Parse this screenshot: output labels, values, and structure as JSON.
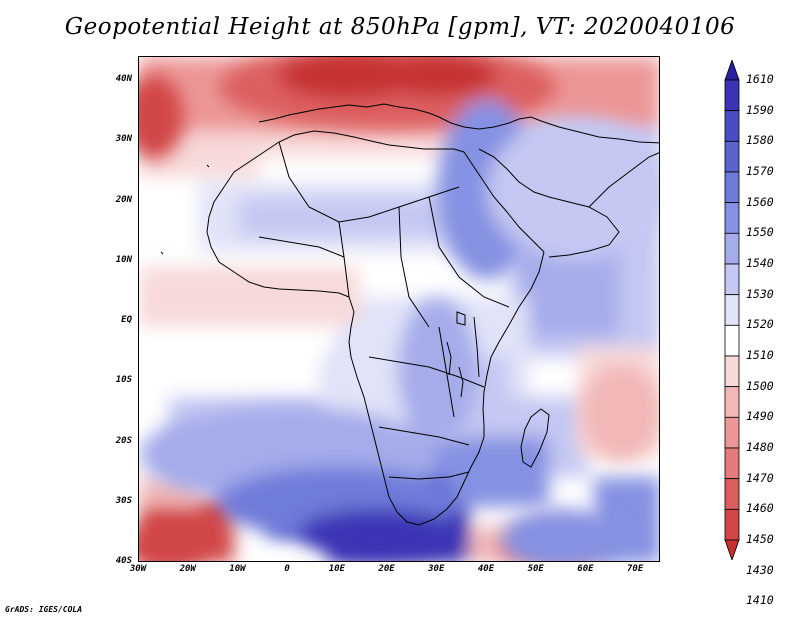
{
  "title": "Geopotential Height at 850hPa [gpm], VT: 2020040106",
  "footer": "GrADS: IGES/COLA",
  "lat_ticks": [
    {
      "value": 40,
      "label": "40N"
    },
    {
      "value": 30,
      "label": "30N"
    },
    {
      "value": 20,
      "label": "20N"
    },
    {
      "value": 10,
      "label": "10N"
    },
    {
      "value": 0,
      "label": "EQ"
    },
    {
      "value": -10,
      "label": "10S"
    },
    {
      "value": -20,
      "label": "20S"
    },
    {
      "value": -30,
      "label": "30S"
    },
    {
      "value": -40,
      "label": "40S"
    }
  ],
  "lon_ticks": [
    {
      "value": -30,
      "label": "30W"
    },
    {
      "value": -20,
      "label": "20W"
    },
    {
      "value": -10,
      "label": "10W"
    },
    {
      "value": 0,
      "label": "0"
    },
    {
      "value": 10,
      "label": "10E"
    },
    {
      "value": 20,
      "label": "20E"
    },
    {
      "value": 30,
      "label": "30E"
    },
    {
      "value": 40,
      "label": "40E"
    },
    {
      "value": 50,
      "label": "50E"
    },
    {
      "value": 60,
      "label": "60E"
    },
    {
      "value": 70,
      "label": "70E"
    }
  ],
  "extent": {
    "lon_min": -30,
    "lon_max": 75,
    "lat_min": -40,
    "lat_max": 44
  },
  "colorbar": {
    "labels": [
      "1610",
      "1590",
      "1580",
      "1570",
      "1560",
      "1550",
      "1540",
      "1530",
      "1520",
      "1510",
      "1500",
      "1490",
      "1480",
      "1470",
      "1460",
      "1450",
      "1430",
      "1410"
    ],
    "colors_top_to_bottom": [
      "#2b1fa0",
      "#3a34b5",
      "#4a4cc4",
      "#5b63cf",
      "#6f7bd9",
      "#8591e2",
      "#a4acea",
      "#c4c8f2",
      "#e1e3f8",
      "#ffffff",
      "#f8d9d9",
      "#f2b7b7",
      "#ec9797",
      "#e47a7a",
      "#dc5f5f",
      "#d24646",
      "#c63030"
    ]
  },
  "field_blobs": [
    {
      "lon": 20,
      "lat": 39,
      "rx": 34,
      "ry": 7,
      "color": "#dc5f5f"
    },
    {
      "lon": 12,
      "lat": 41,
      "rx": 14,
      "ry": 4,
      "color": "#c63030"
    },
    {
      "lon": 30,
      "lat": 41,
      "rx": 12,
      "ry": 3.5,
      "color": "#c63030"
    },
    {
      "lon": -27,
      "lat": 34,
      "rx": 6,
      "ry": 7,
      "color": "#d24646"
    },
    {
      "lon": 40,
      "lat": 22,
      "rx": 10,
      "ry": 15,
      "color": "#8591e2"
    },
    {
      "lon": 58,
      "lat": 22,
      "rx": 18,
      "ry": 12,
      "color": "#c4c8f2"
    },
    {
      "lon": 20,
      "lat": -10,
      "rx": 14,
      "ry": 10,
      "color": "#e1e3f8"
    },
    {
      "lon": 30,
      "lat": -8,
      "rx": 8,
      "ry": 12,
      "color": "#a4acea"
    },
    {
      "lon": 0,
      "lat": -22,
      "rx": 30,
      "ry": 8,
      "color": "#a4acea"
    },
    {
      "lon": 10,
      "lat": -30,
      "rx": 24,
      "ry": 6,
      "color": "#6f7bd9"
    },
    {
      "lon": 18,
      "lat": -35,
      "rx": 16,
      "ry": 4,
      "color": "#3a34b5"
    },
    {
      "lon": 55,
      "lat": -36,
      "rx": 12,
      "ry": 5,
      "color": "#8591e2"
    },
    {
      "lon": -24,
      "lat": -37,
      "rx": 8,
      "ry": 4,
      "color": "#d24646"
    },
    {
      "lon": 67,
      "lat": -15,
      "rx": 8,
      "ry": 8,
      "color": "#f2b7b7"
    }
  ]
}
